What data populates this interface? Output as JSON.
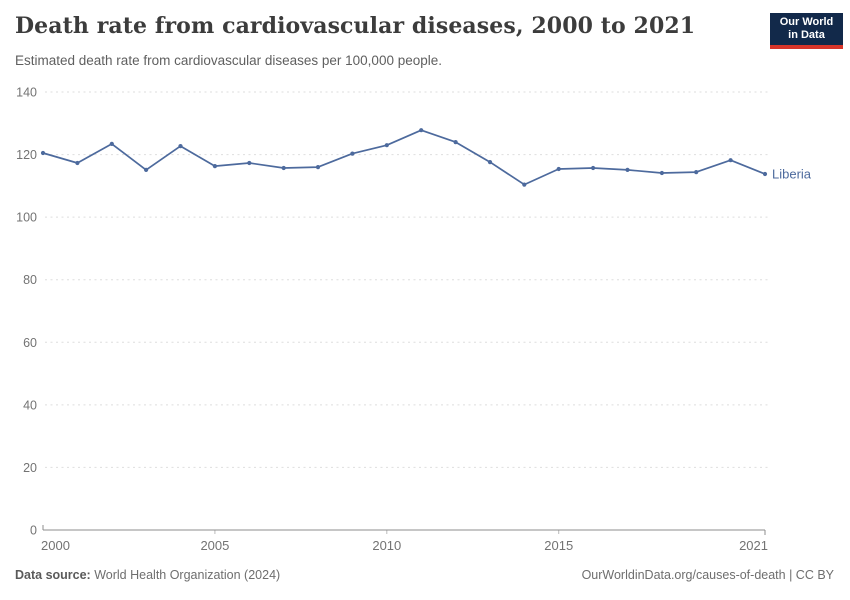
{
  "header": {
    "title": "Death rate from cardiovascular diseases, 2000 to 2021",
    "subtitle": "Estimated death rate from cardiovascular diseases per 100,000 people.",
    "logo": {
      "line1": "Our World",
      "line2": "in Data",
      "bg_color": "#12294a",
      "bar_color": "#d8352a"
    }
  },
  "chart_data": {
    "type": "line",
    "title": "Death rate from cardiovascular diseases, 2000 to 2021",
    "subtitle": "Estimated death rate from cardiovascular diseases per 100,000 people.",
    "xlabel": "",
    "ylabel": "",
    "x": [
      2000,
      2001,
      2002,
      2003,
      2004,
      2005,
      2006,
      2007,
      2008,
      2009,
      2010,
      2011,
      2012,
      2013,
      2014,
      2015,
      2016,
      2017,
      2018,
      2019,
      2020,
      2021
    ],
    "series": [
      {
        "name": "Liberia",
        "color": "#4D6A9D",
        "values": [
          120.5,
          117.3,
          123.4,
          115.1,
          122.7,
          116.3,
          117.3,
          115.7,
          116.0,
          120.3,
          123.0,
          127.8,
          124.0,
          117.6,
          110.4,
          115.4,
          115.7,
          115.1,
          114.1,
          114.4,
          118.2,
          113.8
        ]
      }
    ],
    "ylim": [
      0,
      140
    ],
    "yticks": [
      0,
      20,
      40,
      60,
      80,
      100,
      120,
      140
    ],
    "xticks": [
      2000,
      2005,
      2010,
      2015,
      2021
    ],
    "grid": true,
    "legend_position": "end-of-line-label",
    "colors": {
      "grid": "#dedede",
      "axis": "#8c8c8c",
      "tick_label": "#737373"
    }
  },
  "footer": {
    "source_label": "Data source:",
    "source_value": "World Health Organization (2024)",
    "right_text": "OurWorldinData.org/causes-of-death | CC BY"
  }
}
